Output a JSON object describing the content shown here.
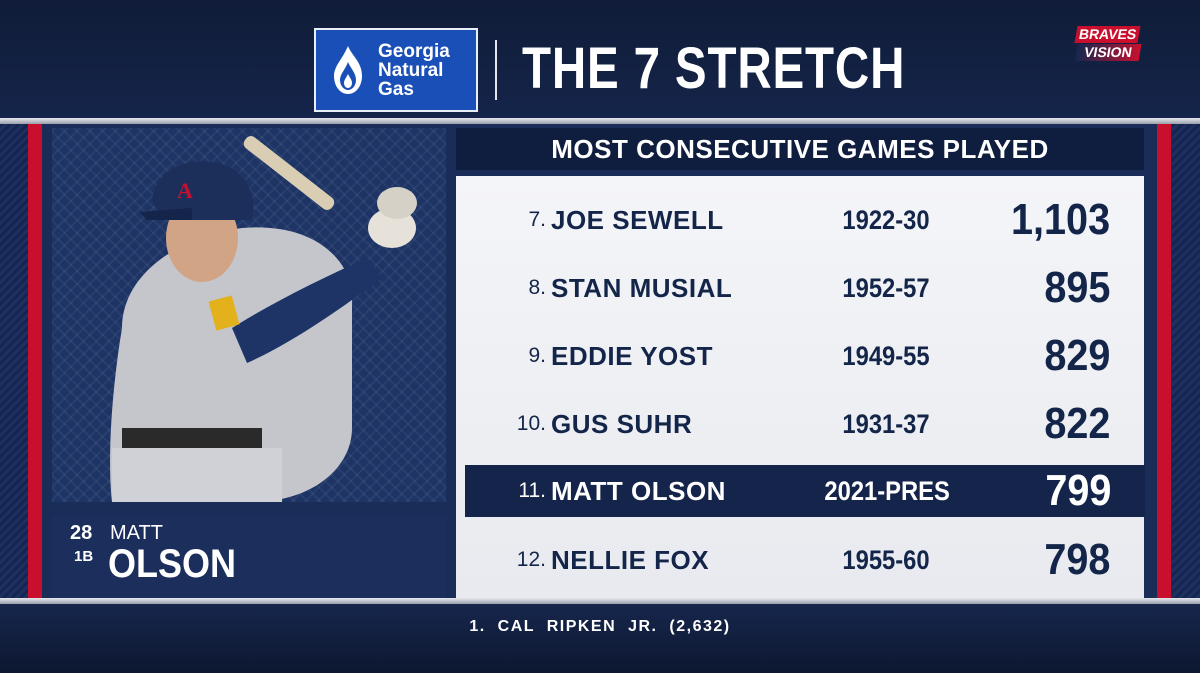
{
  "sponsor": {
    "line1": "Georgia",
    "line2": "Natural",
    "line3": "Gas",
    "icon": "flame-icon",
    "color": "#1a4fb8"
  },
  "title": "THE 7 STRETCH",
  "network": {
    "line1": "BRAVES",
    "line2": "VISION"
  },
  "player": {
    "number": "28",
    "position": "1B",
    "first_name": "MATT",
    "last_name": "OLSON"
  },
  "table": {
    "header": "MOST CONSECUTIVE GAMES PLAYED",
    "rows": [
      {
        "rank": "7.",
        "name": "JOE SEWELL",
        "years": "1922-30",
        "games": "1,103",
        "highlight": false
      },
      {
        "rank": "8.",
        "name": "STAN MUSIAL",
        "years": "1952-57",
        "games": "895",
        "highlight": false
      },
      {
        "rank": "9.",
        "name": "EDDIE YOST",
        "years": "1949-55",
        "games": "829",
        "highlight": false
      },
      {
        "rank": "10.",
        "name": "GUS SUHR",
        "years": "1931-37",
        "games": "822",
        "highlight": false
      },
      {
        "rank": "11.",
        "name": "MATT OLSON",
        "years": "2021-PRES",
        "games": "799",
        "highlight": true
      },
      {
        "rank": "12.",
        "name": "NELLIE FOX",
        "years": "1955-60",
        "games": "798",
        "highlight": false
      }
    ]
  },
  "footer": "1. CAL RIPKEN JR. (2,632)",
  "colors": {
    "navy": "#13274f",
    "red": "#c8102e",
    "highlight_row": "#15244a"
  }
}
